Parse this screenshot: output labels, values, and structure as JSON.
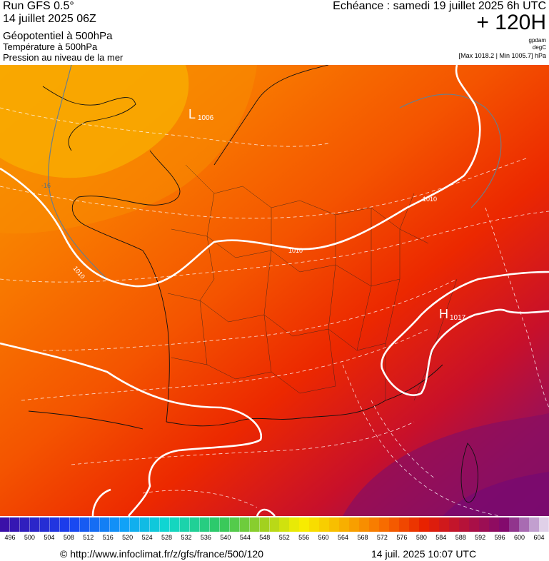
{
  "header": {
    "run": "Run GFS 0.5°",
    "run_date": "14 juillet 2025 06Z",
    "param_main": "Géopotentiel à 500hPa",
    "param_temp": "Température à 500hPa",
    "param_pressure": "Pression au niveau de la mer",
    "echeance": "Echéance : samedi 19 juillet 2025 6h UTC",
    "offset": "+ 120H",
    "unit_geo": "gpdam",
    "unit_temp": "degC",
    "minmax": "[Max 1018.2 | Min 1005.7] hPa"
  },
  "map_labels": {
    "low_letter": "L",
    "low_value": "1006",
    "high_letter": "H",
    "high_value": "1017",
    "isobar_1010_a": "1010",
    "isobar_1010_b": "1010",
    "isobar_1010_c": "1010",
    "isotherm": "-16"
  },
  "colors": {
    "geop_low": "#f8a000",
    "geop_mid": "#f45a00",
    "geop_high": "#e81800",
    "geop_very_high": "#a0104a",
    "geop_max": "#7a0a6a",
    "isobar": "#ffffff",
    "isotherm": "#6a7f8a"
  },
  "scale": {
    "ticks": [
      "496",
      "500",
      "504",
      "508",
      "512",
      "516",
      "520",
      "524",
      "528",
      "532",
      "536",
      "540",
      "544",
      "548",
      "552",
      "556",
      "560",
      "564",
      "568",
      "572",
      "576",
      "580",
      "584",
      "588",
      "592",
      "596",
      "600",
      "604"
    ]
  },
  "footer": {
    "credit": "© http://www.infoclimat.fr/z/gfs/france/500/120",
    "generated": "14 juil. 2025 10:07 UTC"
  }
}
